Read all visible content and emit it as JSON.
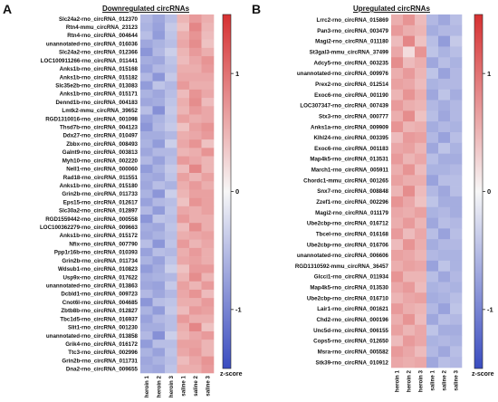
{
  "chart_data": [
    {
      "panel": "A",
      "type": "heatmap",
      "title": "Downregulated circRNAs",
      "columns": [
        "heroin 1",
        "heroin 2",
        "heroin 3",
        "saline 1",
        "saline 2",
        "saline 3"
      ],
      "rows": [
        "Slc24a2-rno_circRNA_012370",
        "Rtn4-mmu_circRNA_23123",
        "Rtn4-rno_circRNA_004644",
        "unannotated-rno_circRNA_016036",
        "Slc24a2-rno_circRNA_012366",
        "LOC100911266-rno_circRNA_011441",
        "Anks1b-rno_circRNA_015168",
        "Anks1b-rno_circRNA_015182",
        "Slc35e2b-rno_circRNA_013083",
        "Anks1b-rno_circRNA_015171",
        "Dennd1b-rno_circRNA_004183",
        "Lmtk2-mmu_circRNA_39652",
        "RGD1310016-rno_circRNA_001098",
        "Thsd7b-rno_circRNA_004123",
        "Ddx27-rno_circRNA_010497",
        "Zbbx-rno_circRNA_008493",
        "Galnt9-rno_circRNA_003813",
        "Myh10-rno_circRNA_002220",
        "Nell1-rno_circRNA_000060",
        "Rad18-rno_circRNA_011551",
        "Anks1b-rno_circRNA_015180",
        "Grin2b-rno_circRNA_011733",
        "Eps15-rno_circRNA_012617",
        "Slc30a2-rno_circRNA_012897",
        "RGD1559442-rno_circRNA_000558",
        "LOC100362279-rno_circRNA_009663",
        "Anks1b-rno_circRNA_015172",
        "Nfix-rno_circRNA_007790",
        "Ppp1r16b-rno_circRNA_010393",
        "Grin2b-rno_circRNA_011734",
        "Wdsub1-rno_circRNA_010823",
        "Usp9x-rno_circRNA_017622",
        "unannotated-rno_circRNA_013863",
        "Dcbld1-rno_circRNA_009723",
        "Cnot6l-rno_circRNA_004685",
        "Zbtb8b-rno_circRNA_012827",
        "Tbc1d5-rno_circRNA_016937",
        "Slit1-rno_circRNA_001230",
        "unannotated-rno_circRNA_013858",
        "Grik4-rno_circRNA_016172",
        "Ttc3-rno_circRNA_002996",
        "Grin2b-rno_circRNA_011731",
        "Dna2-rno_circRNA_009655"
      ],
      "values": [
        [
          -0.55,
          -0.7,
          -0.5,
          0.5,
          0.7,
          0.55
        ],
        [
          -0.6,
          -0.75,
          -0.4,
          0.4,
          0.85,
          0.5
        ],
        [
          -0.5,
          -0.8,
          -0.45,
          0.55,
          0.75,
          0.45
        ],
        [
          -0.7,
          -0.6,
          -0.5,
          0.6,
          0.8,
          0.4
        ],
        [
          -0.85,
          -0.55,
          -0.35,
          0.5,
          0.7,
          0.55
        ],
        [
          -0.65,
          -0.7,
          -0.45,
          0.45,
          0.6,
          0.75
        ],
        [
          -0.75,
          -0.55,
          -0.5,
          0.55,
          0.55,
          0.7
        ],
        [
          -0.55,
          -0.85,
          -0.4,
          0.6,
          0.6,
          0.6
        ],
        [
          -0.8,
          -0.45,
          -0.55,
          0.7,
          0.55,
          0.55
        ],
        [
          -0.6,
          -0.7,
          -0.5,
          0.45,
          0.75,
          0.6
        ],
        [
          -0.7,
          -0.65,
          -0.45,
          0.55,
          0.8,
          0.45
        ],
        [
          -0.5,
          -0.9,
          -0.4,
          0.5,
          0.7,
          0.6
        ],
        [
          -0.75,
          -0.6,
          -0.45,
          0.65,
          0.55,
          0.6
        ],
        [
          -0.85,
          -0.55,
          -0.4,
          0.4,
          0.65,
          0.75
        ],
        [
          -0.65,
          -0.65,
          -0.55,
          0.55,
          0.6,
          0.7
        ],
        [
          -0.6,
          -0.8,
          -0.35,
          0.6,
          0.75,
          0.4
        ],
        [
          -0.7,
          -0.55,
          -0.55,
          0.5,
          0.55,
          0.75
        ],
        [
          -0.55,
          -0.75,
          -0.5,
          0.7,
          0.6,
          0.5
        ],
        [
          -0.8,
          -0.6,
          -0.4,
          0.45,
          0.85,
          0.5
        ],
        [
          -0.65,
          -0.7,
          -0.45,
          0.65,
          0.5,
          0.65
        ],
        [
          -0.7,
          -0.5,
          -0.6,
          0.55,
          0.7,
          0.55
        ],
        [
          -0.6,
          -0.85,
          -0.35,
          0.5,
          0.65,
          0.65
        ],
        [
          -0.75,
          -0.55,
          -0.5,
          0.4,
          0.75,
          0.65
        ],
        [
          -0.55,
          -0.8,
          -0.45,
          0.6,
          0.55,
          0.65
        ],
        [
          -0.85,
          -0.45,
          -0.5,
          0.7,
          0.55,
          0.55
        ],
        [
          -0.65,
          -0.7,
          -0.45,
          0.45,
          0.8,
          0.55
        ],
        [
          -0.7,
          -0.6,
          -0.5,
          0.55,
          0.6,
          0.65
        ],
        [
          -0.5,
          -0.85,
          -0.45,
          0.7,
          0.5,
          0.6
        ],
        [
          -0.75,
          -0.5,
          -0.55,
          0.55,
          0.7,
          0.55
        ],
        [
          -0.6,
          -0.75,
          -0.45,
          0.6,
          0.65,
          0.55
        ],
        [
          -0.8,
          -0.65,
          -0.35,
          0.4,
          0.7,
          0.7
        ],
        [
          -0.65,
          -0.6,
          -0.55,
          0.5,
          0.8,
          0.5
        ],
        [
          -0.7,
          -0.75,
          -0.4,
          0.65,
          0.5,
          0.7
        ],
        [
          -0.55,
          -0.7,
          -0.55,
          0.6,
          0.75,
          0.45
        ],
        [
          -0.85,
          -0.5,
          -0.45,
          0.55,
          0.55,
          0.7
        ],
        [
          -0.6,
          -0.8,
          -0.4,
          0.45,
          0.7,
          0.65
        ],
        [
          -0.75,
          -0.55,
          -0.5,
          0.7,
          0.55,
          0.55
        ],
        [
          -0.65,
          -0.65,
          -0.5,
          0.55,
          0.85,
          0.4
        ],
        [
          -0.55,
          -0.9,
          -0.35,
          0.5,
          0.6,
          0.7
        ],
        [
          -0.8,
          -0.5,
          -0.5,
          0.65,
          0.65,
          0.5
        ],
        [
          -0.6,
          -0.75,
          -0.45,
          0.6,
          0.7,
          0.5
        ],
        [
          -0.7,
          -0.6,
          -0.5,
          0.45,
          0.6,
          0.75
        ],
        [
          -0.65,
          -0.7,
          -0.45,
          0.55,
          0.55,
          0.7
        ]
      ],
      "colorbar": {
        "label": "z-score",
        "range": [
          -1.5,
          1.5
        ],
        "ticks": [
          1,
          0,
          -1
        ],
        "colors": {
          "low": "#3a4cc0",
          "mid": "#f7f7f7",
          "high": "#d63031"
        }
      }
    },
    {
      "panel": "B",
      "type": "heatmap",
      "title": "Upregulated circRNAs",
      "columns": [
        "heroin 1",
        "heroin 2",
        "heroin 3",
        "saline 1",
        "saline 2",
        "saline 3"
      ],
      "rows": [
        "Lrrc2-rno_circRNA_015869",
        "Pan3-rno_circRNA_003479",
        "Magi2-rno_circRNA_011180",
        "St3gal3-mmu_circRNA_37499",
        "Adcy5-rno_circRNA_003235",
        "unannotated-rno_circRNA_009976",
        "Prex2-rno_circRNA_012514",
        "Exoc6-rno_circRNA_001190",
        "LOC307347-rno_circRNA_007439",
        "Stx3-rno_circRNA_000777",
        "Anks1a-rno_circRNA_009909",
        "Klhl24-rno_circRNA_003395",
        "Exoc6-rno_circRNA_001183",
        "Map4k5-rno_circRNA_013531",
        "March1-rno_circRNA_005911",
        "Chordc1-mmu_circRNA_001265",
        "Snx7-rno_circRNA_008848",
        "Zzef1-rno_circRNA_002296",
        "Magi2-rno_circRNA_011179",
        "Ube2cbp-rno_circRNA_016712",
        "Tbcel-rno_circRNA_016168",
        "Ube2cbp-rno_circRNA_016706",
        "unannotated-rno_circRNA_006606",
        "RGD1310592-mmu_circRNA_36457",
        "Glcci1-rno_circRNA_011934",
        "Map4k5-rno_circRNA_013530",
        "Ube2cbp-rno_circRNA_016710",
        "Lair1-rno_circRNA_001621",
        "Chd2-rno_circRNA_000196",
        "Unc5d-rno_circRNA_006155",
        "Cops5-rno_circRNA_012650",
        "Msra-rno_circRNA_005582",
        "Stk39-rno_circRNA_010912"
      ],
      "values": [
        [
          0.55,
          0.75,
          0.45,
          -0.55,
          -0.7,
          -0.5
        ],
        [
          0.7,
          0.55,
          0.5,
          -0.65,
          -0.55,
          -0.55
        ],
        [
          0.45,
          0.85,
          0.4,
          -0.5,
          -0.8,
          -0.4
        ],
        [
          0.6,
          0.2,
          0.75,
          -0.45,
          -0.6,
          -0.5
        ],
        [
          0.8,
          0.45,
          0.55,
          -0.7,
          -0.5,
          -0.6
        ],
        [
          0.55,
          0.7,
          0.5,
          -0.45,
          -0.75,
          -0.55
        ],
        [
          0.65,
          0.6,
          0.45,
          -0.6,
          -0.55,
          -0.55
        ],
        [
          0.5,
          0.75,
          0.55,
          -0.7,
          -0.45,
          -0.65
        ],
        [
          0.7,
          0.55,
          0.5,
          -0.55,
          -0.65,
          -0.55
        ],
        [
          0.55,
          0.8,
          0.4,
          -0.5,
          -0.7,
          -0.55
        ],
        [
          0.75,
          0.5,
          0.55,
          -0.65,
          -0.55,
          -0.6
        ],
        [
          0.45,
          0.7,
          0.65,
          -0.55,
          -0.75,
          -0.5
        ],
        [
          0.6,
          0.65,
          0.5,
          -0.7,
          -0.45,
          -0.6
        ],
        [
          0.7,
          0.5,
          0.6,
          -0.5,
          -0.65,
          -0.65
        ],
        [
          0.55,
          0.75,
          0.45,
          -0.6,
          -0.6,
          -0.55
        ],
        [
          0.65,
          0.55,
          0.55,
          -0.75,
          -0.5,
          -0.5
        ],
        [
          0.5,
          0.8,
          0.45,
          -0.55,
          -0.7,
          -0.5
        ],
        [
          0.75,
          0.6,
          0.4,
          -0.45,
          -0.65,
          -0.65
        ],
        [
          0.6,
          0.55,
          0.65,
          -0.6,
          -0.55,
          -0.65
        ],
        [
          0.55,
          0.7,
          0.5,
          -0.7,
          -0.5,
          -0.55
        ],
        [
          0.7,
          0.45,
          0.6,
          -0.5,
          -0.75,
          -0.5
        ],
        [
          0.45,
          0.75,
          0.55,
          -0.65,
          -0.55,
          -0.55
        ],
        [
          0.65,
          0.6,
          0.5,
          -0.55,
          -0.6,
          -0.6
        ],
        [
          0.55,
          0.65,
          0.6,
          -0.75,
          -0.45,
          -0.6
        ],
        [
          0.75,
          0.5,
          0.5,
          -0.5,
          -0.7,
          -0.55
        ],
        [
          0.6,
          0.7,
          0.45,
          -0.6,
          -0.55,
          -0.6
        ],
        [
          0.5,
          0.6,
          0.65,
          -0.65,
          -0.6,
          -0.5
        ],
        [
          0.7,
          0.55,
          0.5,
          -0.55,
          -0.75,
          -0.45
        ],
        [
          0.55,
          0.75,
          0.45,
          -0.7,
          -0.5,
          -0.55
        ],
        [
          0.65,
          0.5,
          0.6,
          -0.45,
          -0.65,
          -0.65
        ],
        [
          0.45,
          0.7,
          0.6,
          -0.6,
          -0.55,
          -0.6
        ],
        [
          0.7,
          0.6,
          0.45,
          -0.55,
          -0.7,
          -0.5
        ],
        [
          0.6,
          0.55,
          0.6,
          -0.7,
          -0.5,
          -0.55
        ]
      ],
      "colorbar": {
        "label": "z-score",
        "range": [
          -1.5,
          1.5
        ],
        "ticks": [
          1,
          0,
          -1
        ],
        "colors": {
          "low": "#3a4cc0",
          "mid": "#f7f7f7",
          "high": "#d63031"
        }
      }
    }
  ]
}
